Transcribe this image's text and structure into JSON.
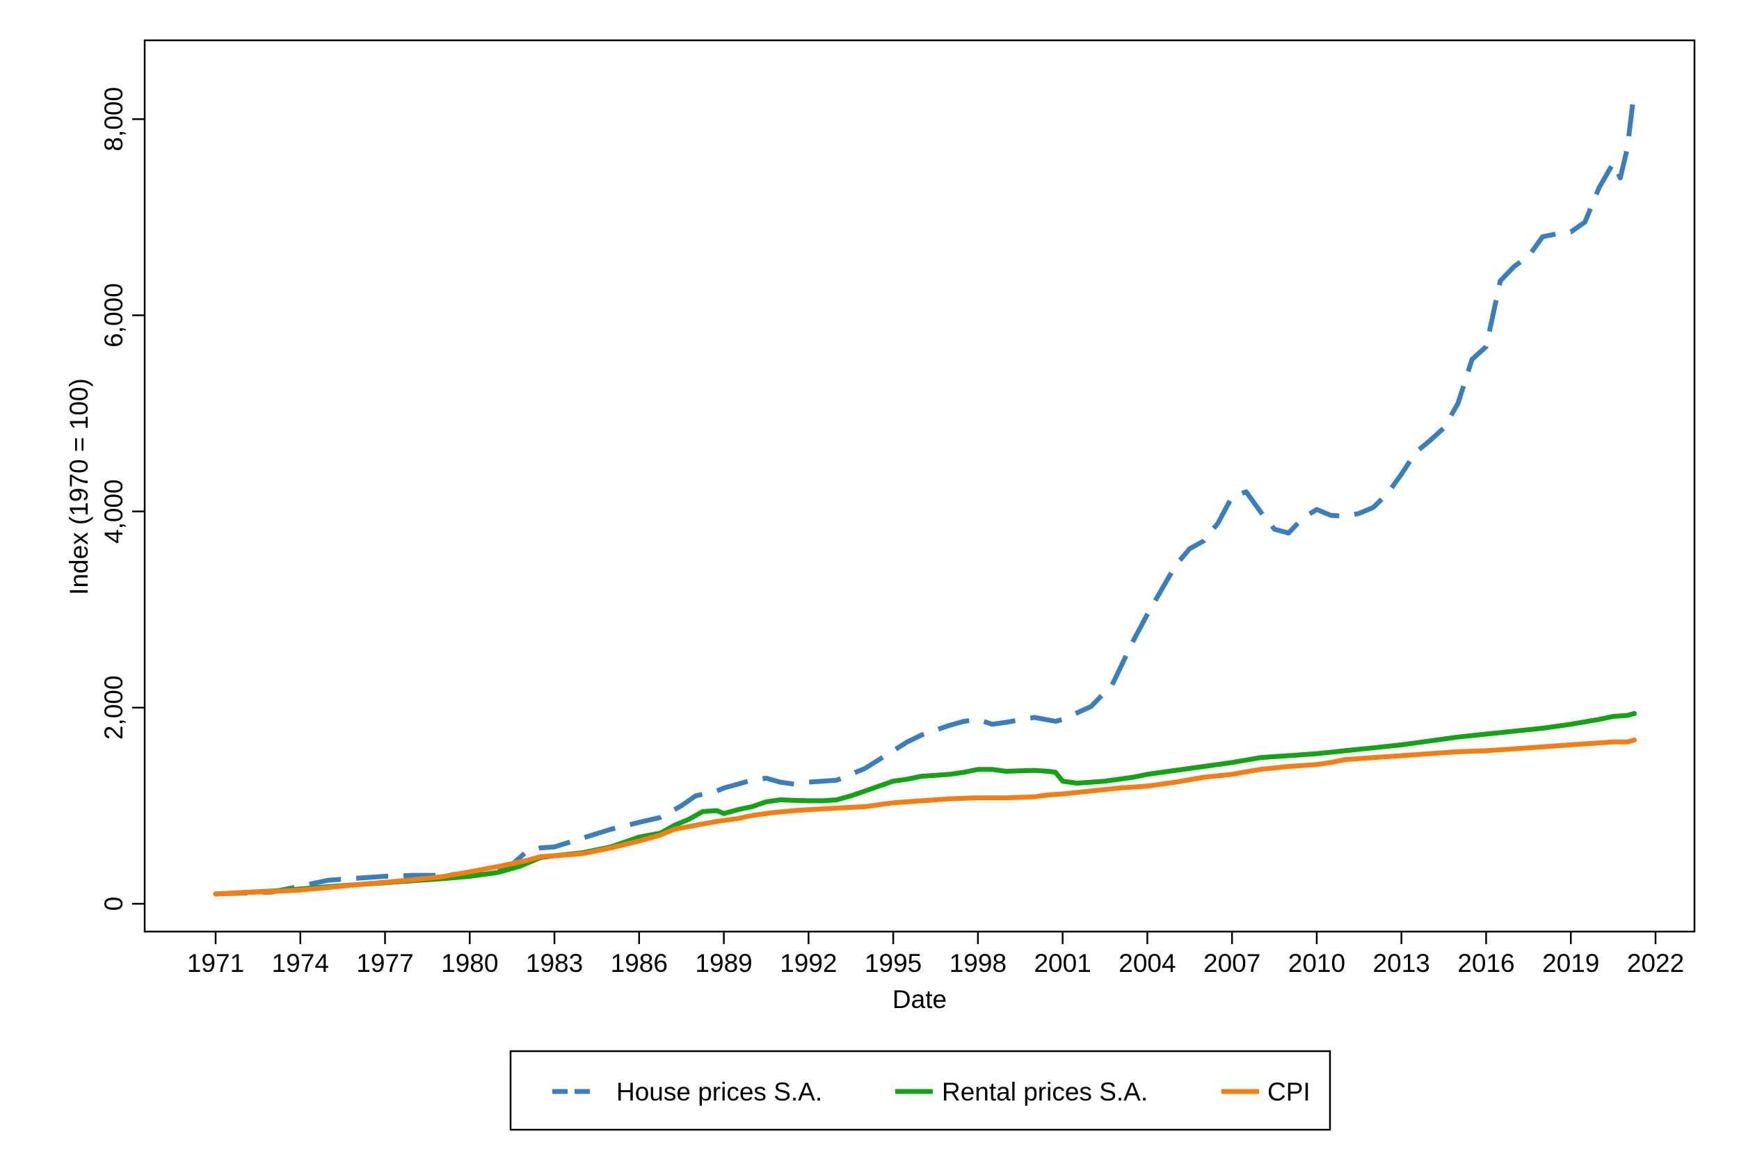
{
  "chart_data": {
    "type": "line",
    "xlabel": "Date",
    "ylabel": "Index (1970 = 100)",
    "xlim": [
      1971,
      2022
    ],
    "ylim": [
      0,
      8300
    ],
    "xticks": [
      {
        "value": 1971,
        "label": "1971"
      },
      {
        "value": 1974,
        "label": "1974"
      },
      {
        "value": 1977,
        "label": "1977"
      },
      {
        "value": 1980,
        "label": "1980"
      },
      {
        "value": 1983,
        "label": "1983"
      },
      {
        "value": 1986,
        "label": "1986"
      },
      {
        "value": 1989,
        "label": "1989"
      },
      {
        "value": 1992,
        "label": "1992"
      },
      {
        "value": 1995,
        "label": "1995"
      },
      {
        "value": 1998,
        "label": "1998"
      },
      {
        "value": 2001,
        "label": "2001"
      },
      {
        "value": 2004,
        "label": "2004"
      },
      {
        "value": 2007,
        "label": "2007"
      },
      {
        "value": 2010,
        "label": "2010"
      },
      {
        "value": 2013,
        "label": "2013"
      },
      {
        "value": 2016,
        "label": "2016"
      },
      {
        "value": 2019,
        "label": "2019"
      },
      {
        "value": 2022,
        "label": "2022"
      }
    ],
    "yticks": [
      {
        "value": 0,
        "label": "0"
      },
      {
        "value": 2000,
        "label": "2,000"
      },
      {
        "value": 4000,
        "label": "4,000"
      },
      {
        "value": 6000,
        "label": "6,000"
      },
      {
        "value": 8000,
        "label": "8,000"
      }
    ],
    "grid": false,
    "legend_position": "bottom",
    "series": [
      {
        "name": "House prices S.A.",
        "color": "#3a7fbc",
        "dash": "dashed",
        "x": [
          1971,
          1972,
          1973,
          1974,
          1975,
          1976,
          1977,
          1978,
          1979,
          1980,
          1981,
          1981.5,
          1982,
          1982.5,
          1983,
          1984,
          1985,
          1986,
          1986.75,
          1987.5,
          1988,
          1988.75,
          1989,
          1990,
          1990.5,
          1991,
          1991.5,
          1992,
          1993,
          1994,
          1995,
          1995.5,
          1996,
          1996.5,
          1997,
          1997.5,
          1998,
          1998.5,
          1999,
          2000,
          2000.75,
          2001,
          2002,
          2002.75,
          2003.5,
          2004,
          2004.5,
          2005,
          2005.5,
          2006,
          2006.5,
          2007,
          2007.5,
          2008,
          2008.5,
          2009,
          2009.5,
          2010,
          2010.5,
          2011,
          2011.5,
          2012,
          2012.5,
          2013,
          2013.5,
          2014,
          2014.5,
          2015,
          2015.5,
          2016,
          2016.5,
          2017,
          2017.5,
          2018,
          2018.5,
          2019,
          2019.5,
          2020,
          2020.5,
          2020.75,
          2021,
          2021.25
        ],
        "values": [
          100,
          110,
          120,
          180,
          240,
          260,
          280,
          290,
          290,
          310,
          350,
          400,
          530,
          570,
          580,
          670,
          760,
          830,
          880,
          1000,
          1100,
          1150,
          1180,
          1260,
          1280,
          1240,
          1220,
          1240,
          1260,
          1380,
          1560,
          1650,
          1720,
          1770,
          1820,
          1860,
          1880,
          1830,
          1850,
          1900,
          1860,
          1880,
          2010,
          2230,
          2680,
          2950,
          3200,
          3450,
          3620,
          3700,
          3880,
          4150,
          4200,
          4000,
          3820,
          3780,
          3930,
          4020,
          3960,
          3950,
          3980,
          4040,
          4180,
          4380,
          4600,
          4720,
          4850,
          5100,
          5550,
          5680,
          6350,
          6500,
          6600,
          6800,
          6830,
          6850,
          6950,
          7300,
          7550,
          7400,
          7700,
          8300
        ]
      },
      {
        "name": "Rental prices S.A.",
        "color": "#14a316",
        "dash": "solid",
        "x": [
          1971,
          1972,
          1973,
          1974,
          1975,
          1976,
          1977,
          1978,
          1979,
          1980,
          1981,
          1981.75,
          1982.5,
          1983,
          1984,
          1985,
          1986,
          1986.75,
          1987.25,
          1987.75,
          1988.25,
          1988.75,
          1989,
          1989.5,
          1990,
          1990.5,
          1991,
          1991.5,
          1992,
          1992.5,
          1993,
          1993.5,
          1994,
          1994.5,
          1995,
          1995.5,
          1996,
          1996.5,
          1997,
          1997.5,
          1998,
          1998.5,
          1999,
          1999.5,
          2000,
          2000.5,
          2000.75,
          2001,
          2001.5,
          2002,
          2002.5,
          2003,
          2003.5,
          2004,
          2005,
          2006,
          2007,
          2008,
          2009,
          2010,
          2011,
          2012,
          2013,
          2014,
          2015,
          2016,
          2017,
          2018,
          2019,
          2020,
          2020.5,
          2021,
          2021.25
        ],
        "values": [
          100,
          115,
          130,
          150,
          175,
          195,
          215,
          235,
          255,
          280,
          320,
          380,
          470,
          490,
          520,
          580,
          680,
          720,
          800,
          860,
          940,
          950,
          920,
          960,
          990,
          1040,
          1060,
          1055,
          1050,
          1050,
          1060,
          1100,
          1150,
          1200,
          1250,
          1270,
          1300,
          1310,
          1320,
          1340,
          1370,
          1370,
          1350,
          1355,
          1360,
          1350,
          1340,
          1250,
          1230,
          1240,
          1250,
          1270,
          1290,
          1320,
          1360,
          1400,
          1440,
          1490,
          1510,
          1530,
          1560,
          1590,
          1620,
          1660,
          1700,
          1730,
          1760,
          1790,
          1830,
          1880,
          1910,
          1920,
          1940
        ]
      },
      {
        "name": "CPI",
        "color": "#f57e14",
        "dash": "solid",
        "x": [
          1971,
          1972,
          1973,
          1974,
          1975,
          1976,
          1977,
          1978,
          1979,
          1980,
          1981,
          1982,
          1982.5,
          1983,
          1984,
          1985,
          1986,
          1986.75,
          1987.25,
          1988,
          1988.75,
          1989.5,
          1990,
          1990.75,
          1991.5,
          1992,
          1993,
          1994,
          1995,
          1996,
          1997,
          1998,
          1999,
          2000,
          2000.5,
          2001,
          2002,
          2003,
          2004,
          2005,
          2006,
          2007,
          2008,
          2009,
          2010,
          2010.5,
          2011,
          2012,
          2013,
          2014,
          2015,
          2016,
          2017,
          2018,
          2019,
          2020,
          2020.5,
          2021,
          2021.25
        ],
        "values": [
          100,
          115,
          125,
          140,
          165,
          195,
          220,
          245,
          275,
          325,
          380,
          440,
          480,
          490,
          510,
          570,
          640,
          700,
          760,
          800,
          840,
          870,
          900,
          930,
          950,
          960,
          975,
          990,
          1030,
          1050,
          1070,
          1080,
          1080,
          1090,
          1110,
          1120,
          1150,
          1180,
          1200,
          1240,
          1290,
          1320,
          1370,
          1400,
          1420,
          1440,
          1470,
          1490,
          1510,
          1530,
          1550,
          1560,
          1580,
          1600,
          1620,
          1640,
          1650,
          1650,
          1670
        ]
      }
    ]
  }
}
